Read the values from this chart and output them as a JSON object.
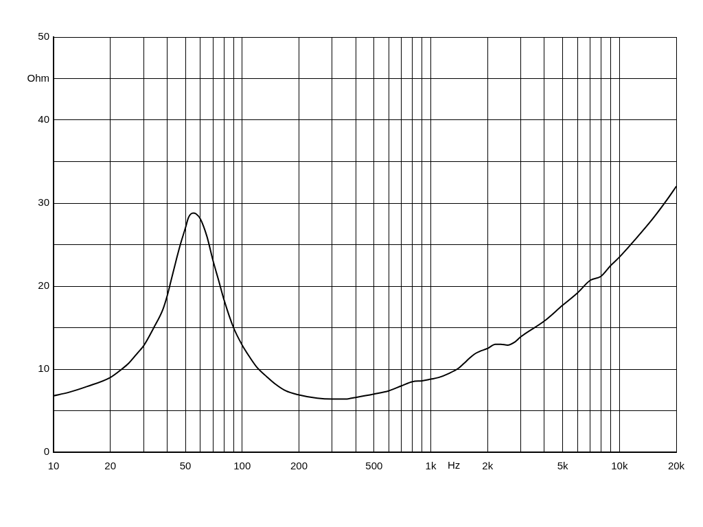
{
  "chart_data": {
    "type": "line",
    "xlabel": "Hz",
    "ylabel": "Ohm",
    "log": "x",
    "grid": true,
    "x": [
      10,
      12,
      15,
      20,
      23,
      25,
      28,
      30,
      34,
      38,
      40,
      42,
      45,
      47,
      50,
      52,
      55,
      57,
      60,
      65,
      70,
      75,
      80,
      90,
      100,
      110,
      120,
      135,
      150,
      170,
      200,
      250,
      300,
      350,
      400,
      500,
      600,
      700,
      800,
      900,
      1000,
      1100,
      1250,
      1400,
      1500,
      1600,
      1700,
      1800,
      2000,
      2200,
      2350,
      2550,
      2800,
      3000,
      4000,
      5000,
      6000,
      7000,
      8000,
      9000,
      10000,
      12000,
      15000,
      18000,
      20000
    ],
    "series": [
      {
        "color": "#000000",
        "values": [
          6.8,
          7.2,
          7.9,
          9.0,
          10.0,
          10.7,
          12.0,
          12.8,
          15.0,
          17.2,
          18.8,
          20.7,
          23.4,
          25.0,
          27.0,
          28.3,
          28.8,
          28.7,
          28.1,
          26.0,
          23.1,
          20.7,
          18.4,
          15.0,
          12.9,
          11.4,
          10.2,
          9.1,
          8.2,
          7.4,
          6.9,
          6.5,
          6.4,
          6.4,
          6.6,
          7.0,
          7.4,
          8.0,
          8.5,
          8.6,
          8.8,
          9.0,
          9.5,
          10.1,
          10.7,
          11.3,
          11.8,
          12.1,
          12.5,
          13.0,
          13.0,
          12.9,
          13.3,
          13.9,
          15.8,
          17.7,
          19.2,
          20.7,
          21.2,
          22.5,
          23.5,
          25.5,
          28.1,
          30.5,
          32.0
        ]
      }
    ],
    "xlim": [
      10,
      20000
    ],
    "xticks": [
      10,
      20,
      {
        "value": 30,
        "label": null
      },
      {
        "value": 40,
        "label": null
      },
      50,
      {
        "value": 60,
        "label": null
      },
      {
        "value": 70,
        "label": null
      },
      {
        "value": 80,
        "label": null
      },
      {
        "value": 90,
        "label": null
      },
      100,
      200,
      {
        "value": 300,
        "label": null
      },
      {
        "value": 400,
        "label": null
      },
      500,
      {
        "value": 600,
        "label": null
      },
      {
        "value": 700,
        "label": null
      },
      {
        "value": 800,
        "label": null
      },
      {
        "value": 900,
        "label": null
      },
      {
        "value": 1000,
        "label": "1k"
      },
      {
        "value": 2000,
        "label": "2k"
      },
      {
        "value": 3000,
        "label": null
      },
      {
        "value": 4000,
        "label": null
      },
      {
        "value": 5000,
        "label": "5k"
      },
      {
        "value": 6000,
        "label": null
      },
      {
        "value": 7000,
        "label": null
      },
      {
        "value": 8000,
        "label": null
      },
      {
        "value": 9000,
        "label": null
      },
      {
        "value": 10000,
        "label": "10k"
      },
      {
        "value": 20000,
        "label": "20k"
      }
    ],
    "ylim": [
      0,
      50
    ],
    "yticks": [
      0,
      {
        "value": 5,
        "label": null
      },
      10,
      {
        "value": 15,
        "label": null
      },
      20,
      {
        "value": 25,
        "label": null
      },
      30,
      {
        "value": 35,
        "label": null
      },
      40,
      {
        "value": 45,
        "label": null
      },
      50
    ]
  }
}
